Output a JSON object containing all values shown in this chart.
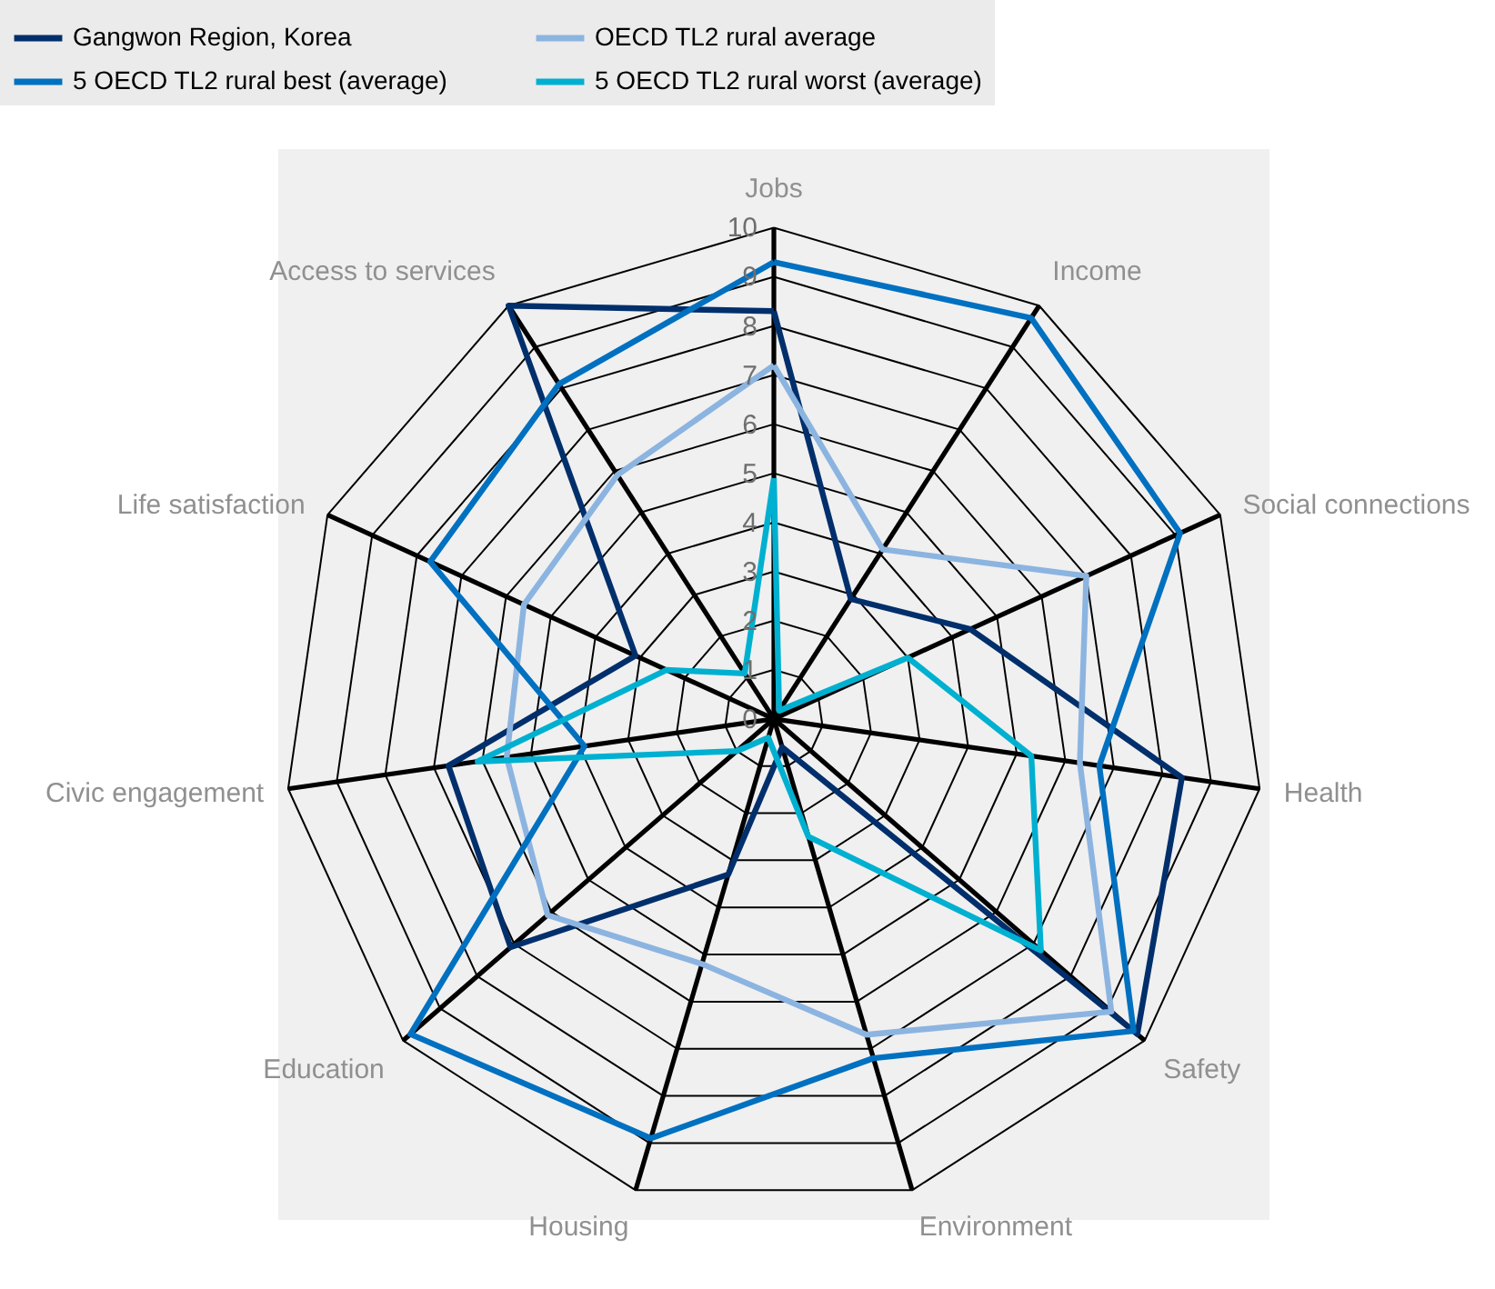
{
  "chart_data": {
    "type": "radar",
    "categories": [
      "Jobs",
      "Income",
      "Social connections",
      "Health",
      "Safety",
      "Environment",
      "Housing",
      "Education",
      "Civic engagement",
      "Life satisfaction",
      "Access to services"
    ],
    "ylim": [
      0,
      10
    ],
    "yticks": [
      0,
      1,
      2,
      3,
      4,
      5,
      6,
      7,
      8,
      9,
      10
    ],
    "grid": true,
    "legend": "top",
    "series": [
      {
        "name": "Gangwon Region, Korea",
        "color": "#002f6c",
        "values": [
          8.3,
          2.9,
          4.4,
          8.4,
          9.8,
          0.6,
          3.3,
          7.1,
          6.7,
          3.1,
          10
        ]
      },
      {
        "name": "OECD TL2 rural average",
        "color": "#8cb4e0",
        "values": [
          7.2,
          4.1,
          7.0,
          6.3,
          9.1,
          6.7,
          5.2,
          6.1,
          5.5,
          5.6,
          5.9
        ]
      },
      {
        "name": "5 OECD TL2 rural best (average)",
        "color": "#0070c0",
        "values": [
          9.3,
          9.7,
          9.1,
          6.7,
          9.7,
          7.2,
          8.9,
          9.8,
          3.9,
          7.7,
          8.1
        ]
      },
      {
        "name": "5 OECD TL2 rural worst (average)",
        "color": "#00b0d0",
        "values": [
          4.9,
          0.2,
          3.0,
          5.3,
          7.2,
          2.5,
          0.4,
          1.0,
          6.1,
          2.4,
          1.1
        ]
      }
    ]
  }
}
